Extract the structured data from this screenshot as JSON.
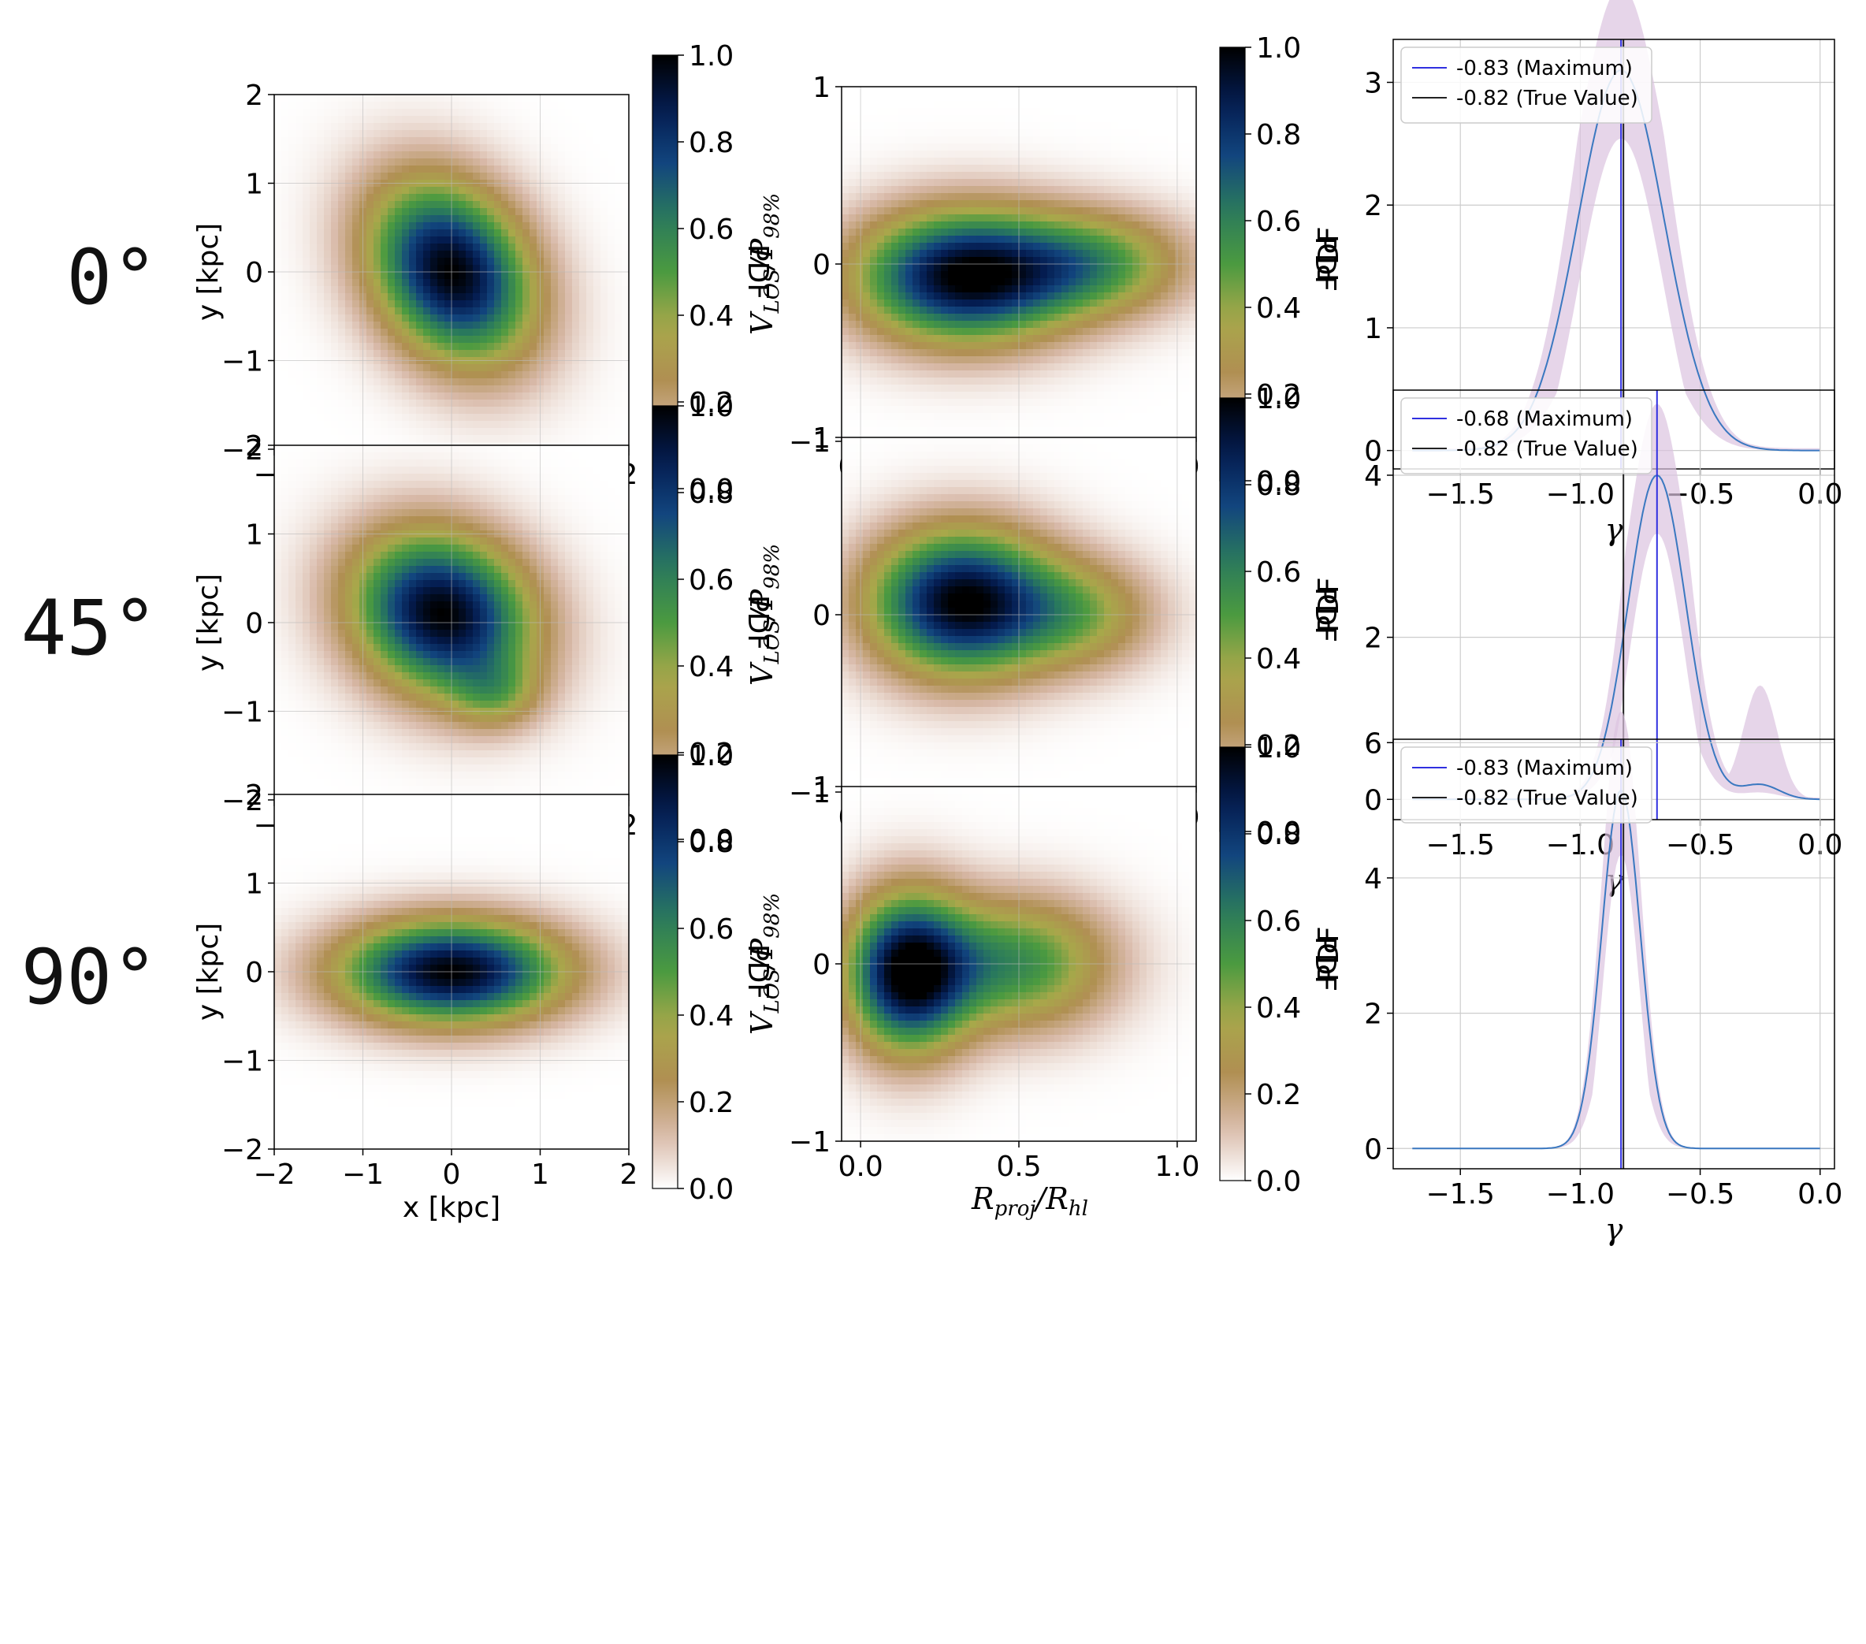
{
  "colormap": [
    "#ffffff",
    "#d8b9a8",
    "#b08f52",
    "#a8a84a",
    "#4b9a40",
    "#2a7a5c",
    "#12457e",
    "#041c50",
    "#000000"
  ],
  "colors": {
    "maximum_line": "#3030e0",
    "true_line": "#222222",
    "pdf_curve": "#3a78c0",
    "band": "#dcc3e0"
  },
  "panel_labels": {
    "xy_x": "x [kpc]",
    "xy_y": "y [kpc]",
    "v_x": "R",
    "v_x_sub": "proj",
    "v_x_den": "/R",
    "v_x_sub2": "hl",
    "v_y": "V",
    "v_y_sub": "LOS",
    "v_y_den": "/P",
    "v_y_sub2": "98%",
    "cbar": "PDF",
    "g_x": "γ",
    "g_y": "PDF"
  },
  "chart_data": [
    {
      "row_label": "0°",
      "xy": {
        "type": "heatmap",
        "xlim": [
          -2,
          2
        ],
        "ylim": [
          -2,
          2
        ],
        "xticks": [
          "−2",
          "−1",
          "0",
          "1",
          "2"
        ],
        "yticks": [
          "2",
          "1",
          "0",
          "−1",
          "−2"
        ],
        "blobs": [
          {
            "x": 0.0,
            "y": 0.0,
            "sx": 0.95,
            "sy": 1.05,
            "rho": -0.25,
            "w": 1.0
          }
        ],
        "colorbar": {
          "range": [
            0,
            1
          ],
          "ticks": [
            "1.0",
            "0.8",
            "0.6",
            "0.4",
            "0.2",
            "0.0"
          ]
        }
      },
      "v": {
        "type": "heatmap",
        "xlim": [
          -0.06,
          1.06
        ],
        "ylim": [
          -1,
          1
        ],
        "xticks": [
          "0.0",
          "0.5",
          "1.0"
        ],
        "yticks": [
          "1",
          "0",
          "−1"
        ],
        "blobs": [
          {
            "x": 0.33,
            "y": -0.07,
            "sx": 0.35,
            "sy": 0.38,
            "rho": 0.0,
            "w": 1.0
          },
          {
            "x": 0.75,
            "y": 0.0,
            "sx": 0.3,
            "sy": 0.3,
            "rho": 0.0,
            "w": 0.45
          }
        ],
        "colorbar": {
          "range": [
            0,
            1
          ],
          "ticks": [
            "1.0",
            "0.8",
            "0.6",
            "0.4",
            "0.2",
            "0.0"
          ]
        }
      },
      "gamma": {
        "type": "line",
        "xlim": [
          -1.78,
          0.06
        ],
        "ylim": [
          -0.15,
          3.35
        ],
        "xticks": [
          "−1.5",
          "−1.0",
          "−0.5",
          "0.0"
        ],
        "xtick_values": [
          -1.5,
          -1.0,
          -0.5,
          0.0
        ],
        "yticks": [
          "3",
          "2",
          "1",
          "0"
        ],
        "ytick_values": [
          3,
          2,
          1,
          0
        ],
        "peak": {
          "mu": -0.83,
          "height": 3.1,
          "sigma": 0.18
        },
        "band": {
          "width": 0.18
        },
        "maximum": -0.83,
        "true_value": -0.82,
        "legend": [
          "-0.83 (Maximum)",
          "-0.82 (True Value)"
        ]
      }
    },
    {
      "row_label": "45°",
      "xy": {
        "type": "heatmap",
        "xlim": [
          -2,
          2
        ],
        "ylim": [
          -2,
          2
        ],
        "xticks": [
          "−2",
          "−1",
          "0",
          "1",
          "2"
        ],
        "yticks": [
          "2",
          "1",
          "0",
          "−1",
          "−2"
        ],
        "blobs": [
          {
            "x": -0.1,
            "y": 0.1,
            "sx": 1.05,
            "sy": 0.95,
            "rho": -0.15,
            "w": 1.0
          },
          {
            "x": 0.5,
            "y": -0.8,
            "sx": 0.5,
            "sy": 0.4,
            "rho": 0.0,
            "w": 0.25
          }
        ],
        "colorbar": {
          "range": [
            0,
            1
          ],
          "ticks": [
            "1.0",
            "0.8",
            "0.6",
            "0.4",
            "0.2",
            "0.0"
          ]
        }
      },
      "v": {
        "type": "heatmap",
        "xlim": [
          -0.06,
          1.06
        ],
        "ylim": [
          -1,
          1
        ],
        "xticks": [
          "0.0",
          "0.5",
          "1.0"
        ],
        "yticks": [
          "1",
          "0",
          "−1"
        ],
        "blobs": [
          {
            "x": 0.32,
            "y": 0.07,
            "sx": 0.3,
            "sy": 0.42,
            "rho": 0.0,
            "w": 1.0
          },
          {
            "x": 0.7,
            "y": 0.0,
            "sx": 0.25,
            "sy": 0.32,
            "rho": 0.0,
            "w": 0.35
          }
        ],
        "colorbar": {
          "range": [
            0,
            1
          ],
          "ticks": [
            "1.0",
            "0.8",
            "0.6",
            "0.4",
            "0.2",
            "0.0"
          ]
        }
      },
      "gamma": {
        "type": "line",
        "xlim": [
          -1.78,
          0.06
        ],
        "ylim": [
          -0.25,
          5.05
        ],
        "xticks": [
          "−1.5",
          "−1.0",
          "−0.5",
          "0.0"
        ],
        "xtick_values": [
          -1.5,
          -1.0,
          -0.5,
          0.0
        ],
        "yticks": [
          "4",
          "2",
          "0"
        ],
        "ytick_values": [
          4,
          2,
          0
        ],
        "peak": {
          "mu": -0.68,
          "height": 4.0,
          "sigma": 0.12
        },
        "bump": {
          "mu": -0.25,
          "height": 0.18,
          "sigma": 0.08
        },
        "band": {
          "width": 0.2,
          "bump_mu": -0.25,
          "bump_height": 1.35,
          "bump_sigma": 0.07
        },
        "maximum": -0.68,
        "true_value": -0.82,
        "legend": [
          "-0.68 (Maximum)",
          "-0.82 (True Value)"
        ]
      }
    },
    {
      "row_label": "90°",
      "xy": {
        "type": "heatmap",
        "xlim": [
          -2,
          2
        ],
        "ylim": [
          -2,
          2
        ],
        "xticks": [
          "−2",
          "−1",
          "0",
          "1",
          "2"
        ],
        "yticks": [
          "2",
          "1",
          "0",
          "−1",
          "−2"
        ],
        "blobs": [
          {
            "x": 0.0,
            "y": 0.0,
            "sx": 1.3,
            "sy": 0.6,
            "rho": 0.0,
            "w": 1.0
          }
        ],
        "colorbar": {
          "range": [
            0,
            1
          ],
          "ticks": [
            "1.0",
            "0.8",
            "0.6",
            "0.4",
            "0.2",
            "0.0"
          ]
        }
      },
      "v": {
        "type": "heatmap",
        "xlim": [
          -0.06,
          1.06
        ],
        "ylim": [
          -1,
          1
        ],
        "xticks": [
          "0.0",
          "0.5",
          "1.0"
        ],
        "yticks": [
          "1",
          "0",
          "−1"
        ],
        "blobs": [
          {
            "x": 0.15,
            "y": -0.05,
            "sx": 0.2,
            "sy": 0.45,
            "rho": 0.0,
            "w": 1.0
          },
          {
            "x": 0.5,
            "y": 0.0,
            "sx": 0.3,
            "sy": 0.38,
            "rho": 0.0,
            "w": 0.55
          }
        ],
        "colorbar": {
          "range": [
            0,
            1
          ],
          "ticks": [
            "1.0",
            "0.8",
            "0.6",
            "0.4",
            "0.2",
            "0.0"
          ]
        }
      },
      "gamma": {
        "type": "line",
        "xlim": [
          -1.78,
          0.06
        ],
        "ylim": [
          -0.3,
          6.05
        ],
        "xticks": [
          "−1.5",
          "−1.0",
          "−0.5",
          "0.0"
        ],
        "xtick_values": [
          -1.5,
          -1.0,
          -0.5,
          0.0
        ],
        "yticks": [
          "6",
          "4",
          "2",
          "0"
        ],
        "ytick_values": [
          6,
          4,
          2,
          0
        ],
        "peak": {
          "mu": -0.83,
          "height": 5.3,
          "sigma": 0.08
        },
        "band": {
          "width": 0.12
        },
        "maximum": -0.83,
        "true_value": -0.82,
        "legend": [
          "-0.83 (Maximum)",
          "-0.82 (True Value)"
        ]
      }
    }
  ]
}
